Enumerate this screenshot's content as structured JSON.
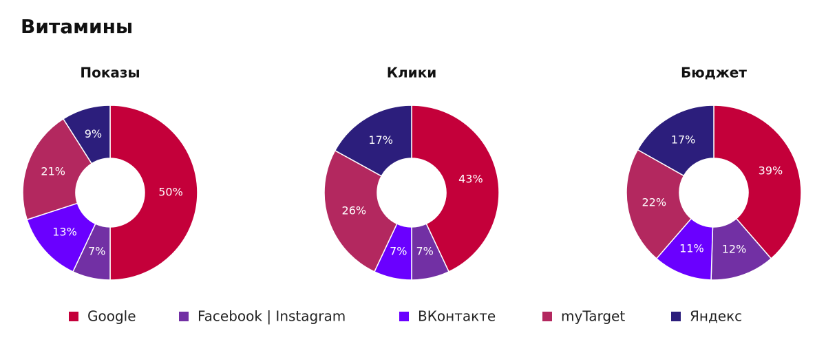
{
  "title": "Витамины",
  "chart_data": [
    {
      "type": "pie",
      "title": "Показы",
      "categories": [
        "Google",
        "Facebook | Instagram",
        "ВКонтакте",
        "myTarget",
        "Яндекс"
      ],
      "values": [
        50,
        7,
        13,
        21,
        9
      ],
      "value_labels": [
        "50%",
        "7%",
        "13%",
        "21%",
        "9%"
      ],
      "colors": [
        "#c4003a",
        "#7230a4",
        "#6a00ff",
        "#b3285f",
        "#2c1e7c"
      ]
    },
    {
      "type": "pie",
      "title": "Клики",
      "categories": [
        "Google",
        "Facebook | Instagram",
        "ВКонтакте",
        "myTarget",
        "Яндекс"
      ],
      "values": [
        43,
        7,
        7,
        26,
        17
      ],
      "value_labels": [
        "43%",
        "7%",
        "7%",
        "26%",
        "17%"
      ],
      "colors": [
        "#c4003a",
        "#7230a4",
        "#6a00ff",
        "#b3285f",
        "#2c1e7c"
      ]
    },
    {
      "type": "pie",
      "title": "Бюджет",
      "categories": [
        "Google",
        "Facebook | Instagram",
        "ВКонтакте",
        "myTarget",
        "Яндекс"
      ],
      "values": [
        39,
        12,
        11,
        22,
        17
      ],
      "value_labels": [
        "39%",
        "12%",
        "11%",
        "22%",
        "17%"
      ],
      "colors": [
        "#c4003a",
        "#7230a4",
        "#6a00ff",
        "#b3285f",
        "#2c1e7c"
      ]
    }
  ]
}
